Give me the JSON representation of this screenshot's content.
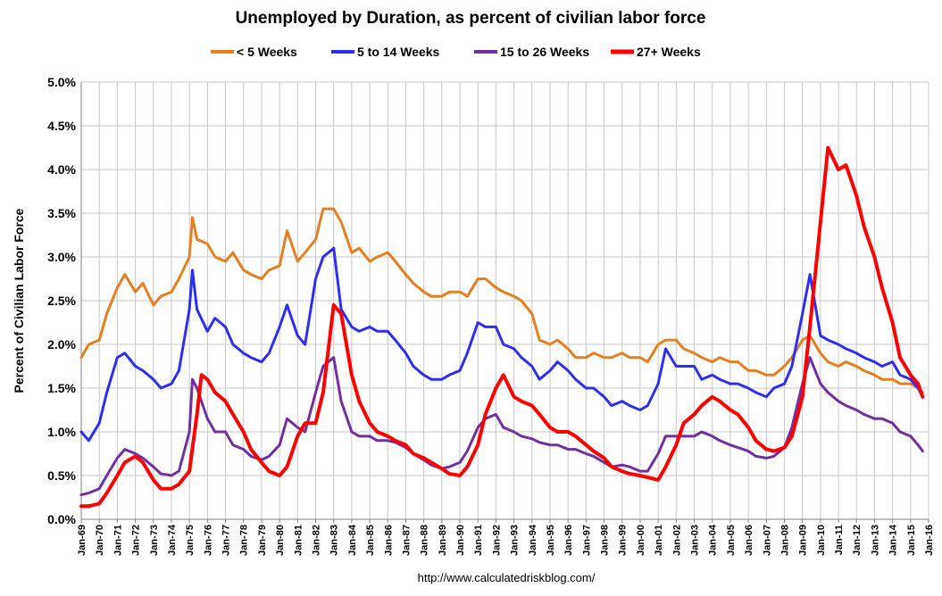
{
  "chart_data": {
    "type": "line",
    "title": "Unemployed by Duration, as percent of civilian labor force",
    "xlabel": "",
    "ylabel": "Percent of Civilian Labor Force",
    "source": "http://www.calculatedriskblog.com/",
    "ylim": [
      0,
      5
    ],
    "yticks": [
      "0.0%",
      "0.5%",
      "1.0%",
      "1.5%",
      "2.0%",
      "2.5%",
      "3.0%",
      "3.5%",
      "4.0%",
      "4.5%",
      "5.0%"
    ],
    "xlim": [
      "Jan-69",
      "Jan-16"
    ],
    "xticks": [
      "Jan-69",
      "Jan-70",
      "Jan-71",
      "Jan-72",
      "Jan-73",
      "Jan-74",
      "Jan-75",
      "Jan-76",
      "Jan-77",
      "Jan-78",
      "Jan-79",
      "Jan-80",
      "Jan-81",
      "Jan-82",
      "Jan-83",
      "Jan-84",
      "Jan-85",
      "Jan-86",
      "Jan-87",
      "Jan-88",
      "Jan-89",
      "Jan-90",
      "Jan-91",
      "Jan-92",
      "Jan-93",
      "Jan-94",
      "Jan-95",
      "Jan-96",
      "Jan-97",
      "Jan-98",
      "Jan-99",
      "Jan-00",
      "Jan-01",
      "Jan-02",
      "Jan-03",
      "Jan-04",
      "Jan-05",
      "Jan-06",
      "Jan-07",
      "Jan-08",
      "Jan-09",
      "Jan-10",
      "Jan-11",
      "Jan-12",
      "Jan-13",
      "Jan-14",
      "Jan-15",
      "Jan-16"
    ],
    "grid": true,
    "legend": "top",
    "series": [
      {
        "name": "< 5 Weeks",
        "color": "#e67e22",
        "x": [
          "1969-01",
          "1969-06",
          "1970-01",
          "1970-06",
          "1971-01",
          "1971-06",
          "1972-01",
          "1972-06",
          "1973-01",
          "1973-06",
          "1974-01",
          "1974-06",
          "1975-01",
          "1975-03",
          "1975-06",
          "1976-01",
          "1976-06",
          "1977-01",
          "1977-06",
          "1978-01",
          "1978-06",
          "1979-01",
          "1979-06",
          "1980-01",
          "1980-06",
          "1981-01",
          "1981-06",
          "1982-01",
          "1982-06",
          "1983-01",
          "1983-06",
          "1984-01",
          "1984-06",
          "1985-01",
          "1985-06",
          "1986-01",
          "1986-06",
          "1987-01",
          "1987-06",
          "1988-01",
          "1988-06",
          "1989-01",
          "1989-06",
          "1990-01",
          "1990-06",
          "1991-01",
          "1991-06",
          "1992-01",
          "1992-06",
          "1993-01",
          "1993-06",
          "1994-01",
          "1994-06",
          "1995-01",
          "1995-06",
          "1996-01",
          "1996-06",
          "1997-01",
          "1997-06",
          "1998-01",
          "1998-06",
          "1999-01",
          "1999-06",
          "2000-01",
          "2000-06",
          "2001-01",
          "2001-06",
          "2002-01",
          "2002-06",
          "2003-01",
          "2003-06",
          "2004-01",
          "2004-06",
          "2005-01",
          "2005-06",
          "2006-01",
          "2006-06",
          "2007-01",
          "2007-06",
          "2008-01",
          "2008-06",
          "2009-01",
          "2009-06",
          "2010-01",
          "2010-06",
          "2011-01",
          "2011-06",
          "2012-01",
          "2012-06",
          "2013-01",
          "2013-06",
          "2014-01",
          "2014-06",
          "2015-01",
          "2015-06",
          "2015-09"
        ],
        "y": [
          1.85,
          2.0,
          2.05,
          2.35,
          2.65,
          2.8,
          2.6,
          2.7,
          2.45,
          2.55,
          2.6,
          2.75,
          3.0,
          3.45,
          3.2,
          3.15,
          3.0,
          2.95,
          3.05,
          2.85,
          2.8,
          2.75,
          2.85,
          2.9,
          3.3,
          2.95,
          3.05,
          3.2,
          3.55,
          3.55,
          3.4,
          3.05,
          3.1,
          2.95,
          3.0,
          3.05,
          2.95,
          2.8,
          2.7,
          2.6,
          2.55,
          2.55,
          2.6,
          2.6,
          2.55,
          2.75,
          2.75,
          2.65,
          2.6,
          2.55,
          2.5,
          2.35,
          2.05,
          2.0,
          2.05,
          1.95,
          1.85,
          1.85,
          1.9,
          1.85,
          1.85,
          1.9,
          1.85,
          1.85,
          1.8,
          2.0,
          2.05,
          2.05,
          1.95,
          1.9,
          1.85,
          1.8,
          1.85,
          1.8,
          1.8,
          1.7,
          1.7,
          1.65,
          1.65,
          1.75,
          1.85,
          2.05,
          2.1,
          1.9,
          1.8,
          1.75,
          1.8,
          1.75,
          1.7,
          1.65,
          1.6,
          1.6,
          1.55,
          1.55,
          1.5,
          1.45
        ]
      },
      {
        "name": "5 to 14 Weeks",
        "color": "#2e2ef0",
        "x": [
          "1969-01",
          "1969-06",
          "1970-01",
          "1970-06",
          "1971-01",
          "1971-06",
          "1972-01",
          "1972-06",
          "1973-01",
          "1973-06",
          "1974-01",
          "1974-06",
          "1975-01",
          "1975-03",
          "1975-06",
          "1976-01",
          "1976-06",
          "1977-01",
          "1977-06",
          "1978-01",
          "1978-06",
          "1979-01",
          "1979-06",
          "1980-01",
          "1980-06",
          "1981-01",
          "1981-06",
          "1982-01",
          "1982-06",
          "1983-01",
          "1983-06",
          "1984-01",
          "1984-06",
          "1985-01",
          "1985-06",
          "1986-01",
          "1986-06",
          "1987-01",
          "1987-06",
          "1988-01",
          "1988-06",
          "1989-01",
          "1989-06",
          "1990-01",
          "1990-06",
          "1991-01",
          "1991-06",
          "1992-01",
          "1992-06",
          "1993-01",
          "1993-06",
          "1994-01",
          "1994-06",
          "1995-01",
          "1995-06",
          "1996-01",
          "1996-06",
          "1997-01",
          "1997-06",
          "1998-01",
          "1998-06",
          "1999-01",
          "1999-06",
          "2000-01",
          "2000-06",
          "2001-01",
          "2001-06",
          "2002-01",
          "2002-06",
          "2003-01",
          "2003-06",
          "2004-01",
          "2004-06",
          "2005-01",
          "2005-06",
          "2006-01",
          "2006-06",
          "2007-01",
          "2007-06",
          "2008-01",
          "2008-06",
          "2009-01",
          "2009-06",
          "2010-01",
          "2010-06",
          "2011-01",
          "2011-06",
          "2012-01",
          "2012-06",
          "2013-01",
          "2013-06",
          "2014-01",
          "2014-06",
          "2015-01",
          "2015-06",
          "2015-09"
        ],
        "y": [
          1.0,
          0.9,
          1.1,
          1.45,
          1.85,
          1.9,
          1.75,
          1.7,
          1.6,
          1.5,
          1.55,
          1.7,
          2.4,
          2.85,
          2.4,
          2.15,
          2.3,
          2.2,
          2.0,
          1.9,
          1.85,
          1.8,
          1.9,
          2.2,
          2.45,
          2.1,
          2.0,
          2.75,
          3.0,
          3.1,
          2.4,
          2.2,
          2.15,
          2.2,
          2.15,
          2.15,
          2.05,
          1.9,
          1.75,
          1.65,
          1.6,
          1.6,
          1.65,
          1.7,
          1.9,
          2.25,
          2.2,
          2.2,
          2.0,
          1.95,
          1.85,
          1.75,
          1.6,
          1.7,
          1.8,
          1.7,
          1.6,
          1.5,
          1.5,
          1.4,
          1.3,
          1.35,
          1.3,
          1.25,
          1.3,
          1.55,
          1.95,
          1.75,
          1.75,
          1.75,
          1.6,
          1.65,
          1.6,
          1.55,
          1.55,
          1.5,
          1.45,
          1.4,
          1.5,
          1.55,
          1.75,
          2.35,
          2.8,
          2.1,
          2.05,
          2.0,
          1.95,
          1.9,
          1.85,
          1.8,
          1.75,
          1.8,
          1.65,
          1.6,
          1.5,
          1.4
        ]
      },
      {
        "name": "15 to 26 Weeks",
        "color": "#7030a0",
        "x": [
          "1969-01",
          "1969-06",
          "1970-01",
          "1970-06",
          "1971-01",
          "1971-06",
          "1972-01",
          "1972-06",
          "1973-01",
          "1973-06",
          "1974-01",
          "1974-06",
          "1975-01",
          "1975-03",
          "1975-06",
          "1976-01",
          "1976-06",
          "1977-01",
          "1977-06",
          "1978-01",
          "1978-06",
          "1979-01",
          "1979-06",
          "1980-01",
          "1980-06",
          "1981-01",
          "1981-06",
          "1982-01",
          "1982-06",
          "1983-01",
          "1983-06",
          "1984-01",
          "1984-06",
          "1985-01",
          "1985-06",
          "1986-01",
          "1986-06",
          "1987-01",
          "1987-06",
          "1988-01",
          "1988-06",
          "1989-01",
          "1989-06",
          "1990-01",
          "1990-06",
          "1991-01",
          "1991-06",
          "1992-01",
          "1992-06",
          "1993-01",
          "1993-06",
          "1994-01",
          "1994-06",
          "1995-01",
          "1995-06",
          "1996-01",
          "1996-06",
          "1997-01",
          "1997-06",
          "1998-01",
          "1998-06",
          "1999-01",
          "1999-06",
          "2000-01",
          "2000-06",
          "2001-01",
          "2001-06",
          "2002-01",
          "2002-06",
          "2003-01",
          "2003-06",
          "2004-01",
          "2004-06",
          "2005-01",
          "2005-06",
          "2006-01",
          "2006-06",
          "2007-01",
          "2007-06",
          "2008-01",
          "2008-06",
          "2009-01",
          "2009-06",
          "2010-01",
          "2010-06",
          "2011-01",
          "2011-06",
          "2012-01",
          "2012-06",
          "2013-01",
          "2013-06",
          "2014-01",
          "2014-06",
          "2015-01",
          "2015-06",
          "2015-09"
        ],
        "y": [
          0.28,
          0.3,
          0.35,
          0.5,
          0.7,
          0.8,
          0.75,
          0.7,
          0.6,
          0.52,
          0.5,
          0.55,
          1.0,
          1.6,
          1.5,
          1.15,
          1.0,
          1.0,
          0.85,
          0.8,
          0.72,
          0.68,
          0.72,
          0.85,
          1.15,
          1.05,
          1.0,
          1.45,
          1.75,
          1.85,
          1.35,
          1.0,
          0.95,
          0.95,
          0.9,
          0.9,
          0.88,
          0.82,
          0.75,
          0.68,
          0.62,
          0.58,
          0.6,
          0.65,
          0.78,
          1.05,
          1.15,
          1.2,
          1.05,
          1.0,
          0.95,
          0.92,
          0.88,
          0.85,
          0.85,
          0.8,
          0.8,
          0.75,
          0.72,
          0.65,
          0.6,
          0.62,
          0.6,
          0.55,
          0.55,
          0.75,
          0.95,
          0.95,
          0.95,
          0.95,
          1.0,
          0.95,
          0.9,
          0.85,
          0.82,
          0.78,
          0.72,
          0.7,
          0.72,
          0.82,
          1.05,
          1.55,
          1.85,
          1.55,
          1.45,
          1.35,
          1.3,
          1.25,
          1.2,
          1.15,
          1.15,
          1.1,
          1.0,
          0.95,
          0.85,
          0.78
        ]
      },
      {
        "name": "27+ Weeks",
        "color": "#ff0000",
        "x": [
          "1969-01",
          "1969-06",
          "1970-01",
          "1970-06",
          "1971-01",
          "1971-06",
          "1972-01",
          "1972-06",
          "1973-01",
          "1973-06",
          "1974-01",
          "1974-06",
          "1975-01",
          "1975-06",
          "1975-09",
          "1976-01",
          "1976-06",
          "1977-01",
          "1977-06",
          "1978-01",
          "1978-06",
          "1979-01",
          "1979-06",
          "1980-01",
          "1980-06",
          "1981-01",
          "1981-06",
          "1982-01",
          "1982-06",
          "1983-01",
          "1983-06",
          "1984-01",
          "1984-06",
          "1985-01",
          "1985-06",
          "1986-01",
          "1986-06",
          "1987-01",
          "1987-06",
          "1988-01",
          "1988-06",
          "1989-01",
          "1989-06",
          "1990-01",
          "1990-06",
          "1991-01",
          "1991-06",
          "1992-01",
          "1992-06",
          "1993-01",
          "1993-06",
          "1994-01",
          "1994-06",
          "1995-01",
          "1995-06",
          "1996-01",
          "1996-06",
          "1997-01",
          "1997-06",
          "1998-01",
          "1998-06",
          "1999-01",
          "1999-06",
          "2000-01",
          "2000-06",
          "2001-01",
          "2001-06",
          "2002-01",
          "2002-06",
          "2003-01",
          "2003-06",
          "2004-01",
          "2004-06",
          "2005-01",
          "2005-06",
          "2006-01",
          "2006-06",
          "2007-01",
          "2007-06",
          "2008-01",
          "2008-06",
          "2009-01",
          "2009-06",
          "2010-01",
          "2010-06",
          "2011-01",
          "2011-06",
          "2012-01",
          "2012-06",
          "2013-01",
          "2013-06",
          "2014-01",
          "2014-06",
          "2015-01",
          "2015-06",
          "2015-09"
        ],
        "y": [
          0.15,
          0.15,
          0.18,
          0.3,
          0.5,
          0.65,
          0.72,
          0.65,
          0.45,
          0.35,
          0.35,
          0.4,
          0.55,
          1.2,
          1.65,
          1.6,
          1.45,
          1.35,
          1.2,
          1.0,
          0.8,
          0.65,
          0.55,
          0.5,
          0.6,
          0.95,
          1.1,
          1.1,
          1.45,
          2.45,
          2.35,
          1.65,
          1.35,
          1.1,
          1.0,
          0.95,
          0.9,
          0.85,
          0.75,
          0.7,
          0.65,
          0.58,
          0.52,
          0.5,
          0.6,
          0.85,
          1.2,
          1.5,
          1.65,
          1.4,
          1.35,
          1.3,
          1.2,
          1.05,
          1.0,
          1.0,
          0.95,
          0.85,
          0.78,
          0.7,
          0.6,
          0.55,
          0.52,
          0.5,
          0.48,
          0.45,
          0.6,
          0.85,
          1.1,
          1.2,
          1.3,
          1.4,
          1.35,
          1.25,
          1.2,
          1.05,
          0.9,
          0.8,
          0.78,
          0.82,
          0.95,
          1.4,
          2.2,
          3.4,
          4.25,
          4.0,
          4.05,
          3.7,
          3.35,
          3.0,
          2.65,
          2.25,
          1.85,
          1.65,
          1.55,
          1.4
        ]
      }
    ]
  }
}
